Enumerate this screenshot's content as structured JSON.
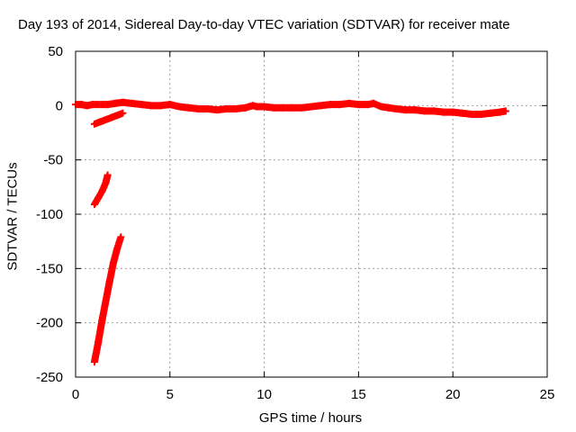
{
  "chart_data": {
    "type": "scatter",
    "title": "Day 193 of 2014, Sidereal Day-to-day VTEC variation (SDTVAR) for receiver mate",
    "xlabel": "GPS time / hours",
    "ylabel": "SDTVAR / TECUs",
    "xlim": [
      0,
      25
    ],
    "ylim": [
      -250,
      50
    ],
    "xticks": [
      0,
      5,
      10,
      15,
      20,
      25
    ],
    "yticks": [
      -250,
      -200,
      -150,
      -100,
      -50,
      0,
      50
    ],
    "grid": true,
    "marker": "+",
    "color": "#ff0000",
    "series": [
      {
        "name": "main-band",
        "points": [
          [
            0.0,
            1
          ],
          [
            0.3,
            1
          ],
          [
            0.6,
            0
          ],
          [
            0.9,
            1
          ],
          [
            1.7,
            1
          ],
          [
            2.1,
            2
          ],
          [
            2.5,
            3
          ],
          [
            3.0,
            2
          ],
          [
            3.5,
            1
          ],
          [
            4.0,
            0
          ],
          [
            4.5,
            0
          ],
          [
            5.0,
            1
          ],
          [
            5.5,
            -1
          ],
          [
            6.0,
            -2
          ],
          [
            6.5,
            -3
          ],
          [
            7.0,
            -3
          ],
          [
            7.5,
            -4
          ],
          [
            8.0,
            -3
          ],
          [
            8.5,
            -3
          ],
          [
            9.0,
            -2
          ],
          [
            9.4,
            0
          ],
          [
            9.6,
            -1
          ],
          [
            10.0,
            -1
          ],
          [
            10.5,
            -2
          ],
          [
            11.0,
            -2
          ],
          [
            11.5,
            -2
          ],
          [
            12.0,
            -2
          ],
          [
            12.5,
            -1
          ],
          [
            13.0,
            0
          ],
          [
            13.5,
            1
          ],
          [
            14.0,
            1
          ],
          [
            14.5,
            2
          ],
          [
            15.0,
            1
          ],
          [
            15.5,
            1
          ],
          [
            15.8,
            2
          ],
          [
            16.2,
            -1
          ],
          [
            16.6,
            -2
          ],
          [
            17.0,
            -3
          ],
          [
            17.5,
            -4
          ],
          [
            18.0,
            -4
          ],
          [
            18.5,
            -5
          ],
          [
            19.0,
            -5
          ],
          [
            19.5,
            -6
          ],
          [
            20.0,
            -6
          ],
          [
            20.5,
            -7
          ],
          [
            21.0,
            -8
          ],
          [
            21.5,
            -8
          ],
          [
            22.0,
            -7
          ],
          [
            22.5,
            -6
          ],
          [
            22.8,
            -5
          ]
        ]
      },
      {
        "name": "tail-1",
        "points": [
          [
            1.0,
            -17
          ],
          [
            1.3,
            -15
          ],
          [
            1.6,
            -13
          ],
          [
            1.9,
            -11
          ],
          [
            2.2,
            -9
          ],
          [
            2.5,
            -7
          ]
        ]
      },
      {
        "name": "tail-2",
        "points": [
          [
            1.0,
            -91
          ],
          [
            1.2,
            -85
          ],
          [
            1.4,
            -79
          ],
          [
            1.6,
            -71
          ],
          [
            1.7,
            -64
          ]
        ]
      },
      {
        "name": "tail-3",
        "points": [
          [
            1.0,
            -236
          ],
          [
            1.2,
            -218
          ],
          [
            1.4,
            -198
          ],
          [
            1.6,
            -180
          ],
          [
            1.8,
            -162
          ],
          [
            2.0,
            -145
          ],
          [
            2.2,
            -132
          ],
          [
            2.4,
            -121
          ]
        ]
      }
    ]
  }
}
